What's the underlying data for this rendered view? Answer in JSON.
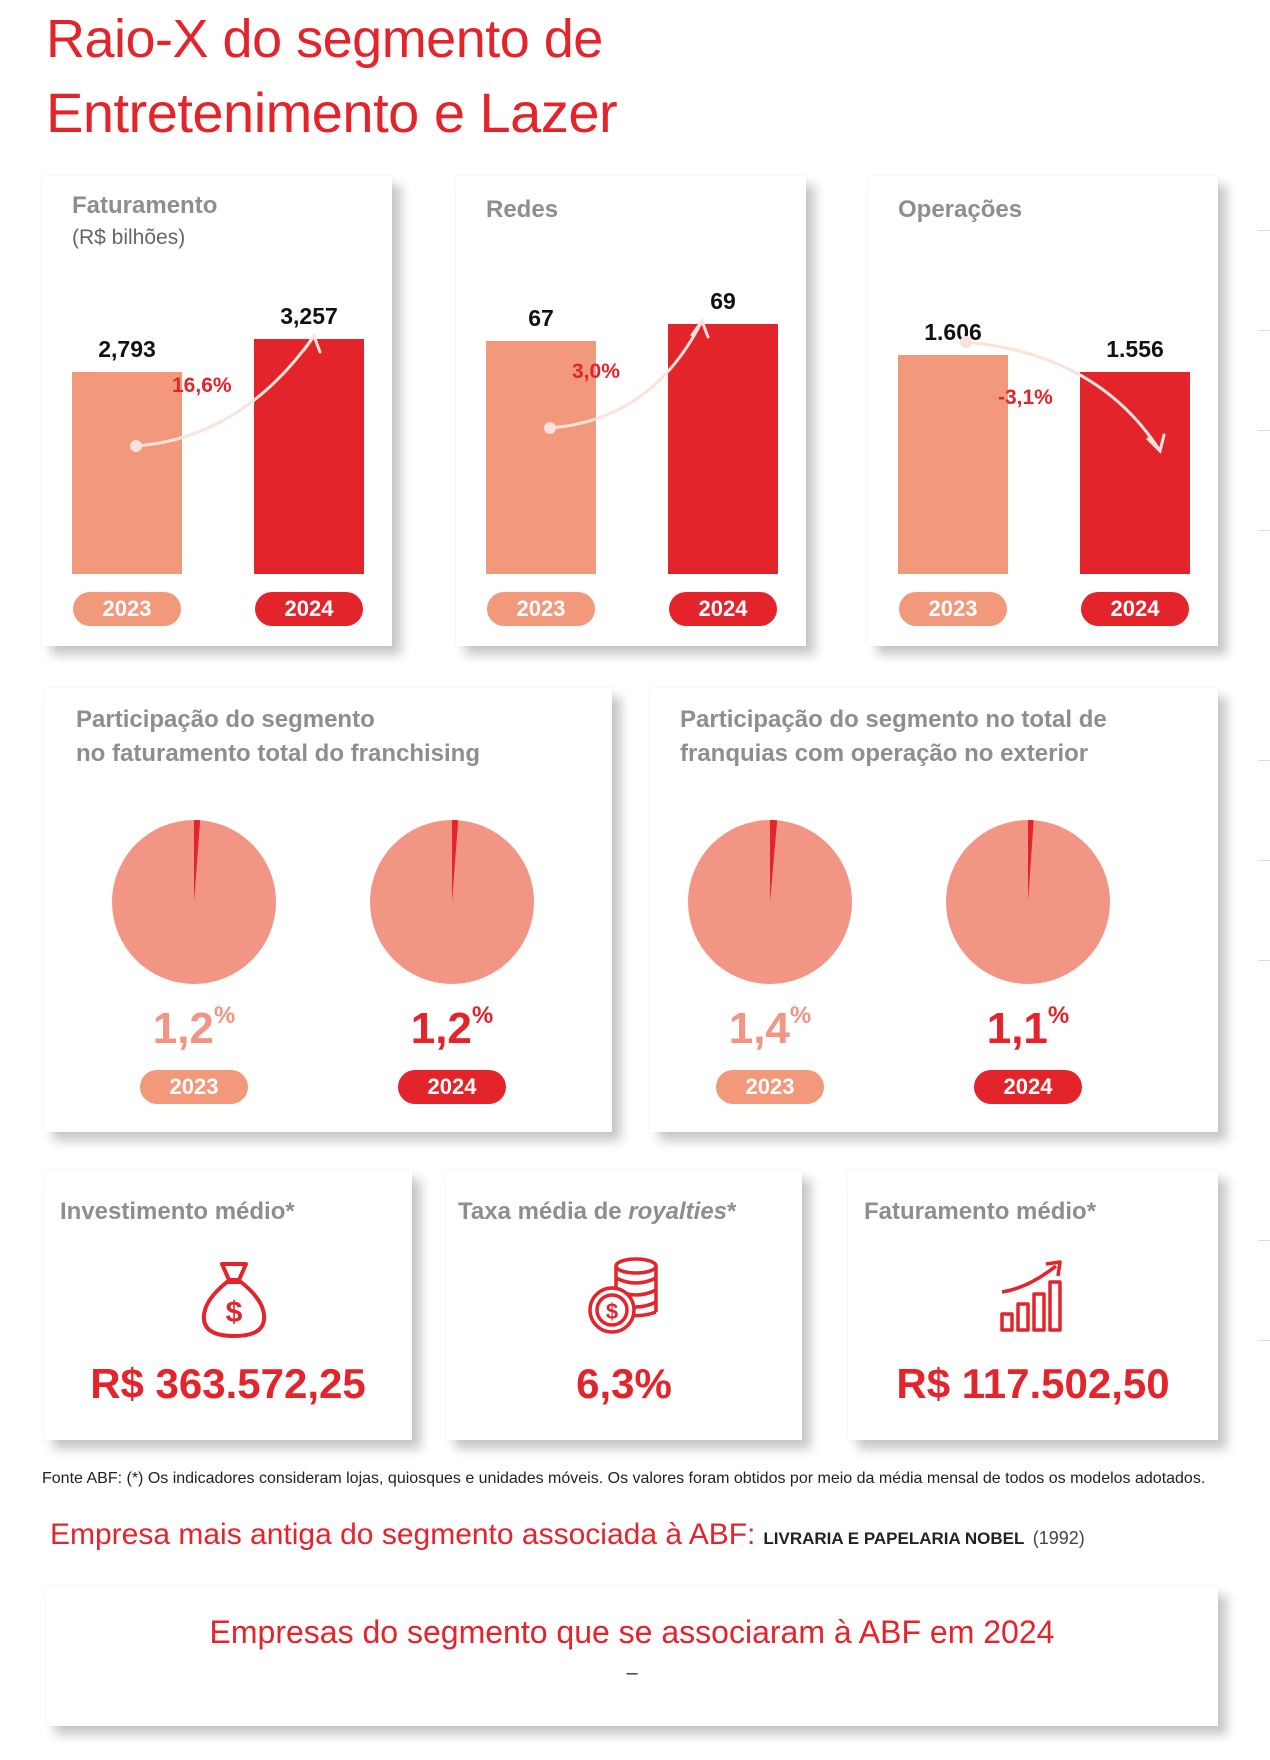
{
  "title": {
    "line1": "Raio-X do segmento de",
    "line2": "Entretenimento e Lazer"
  },
  "colors": {
    "light": "#f2987b",
    "dark": "#e3242b",
    "pie_light": "#f29585",
    "pie_slice": "#e3242b",
    "gray_title": "#8e8e8e"
  },
  "bar_cards": [
    {
      "title": "Faturamento",
      "subtitle": "(R$ bilhões)",
      "years": [
        "2023",
        "2024"
      ],
      "labels": [
        "2,793",
        "3,257"
      ],
      "change": "16,6%",
      "direction": "up"
    },
    {
      "title": "Redes",
      "subtitle": "",
      "years": [
        "2023",
        "2024"
      ],
      "labels": [
        "67",
        "69"
      ],
      "change": "3,0%",
      "direction": "up"
    },
    {
      "title": "Operações",
      "subtitle": "",
      "years": [
        "2023",
        "2024"
      ],
      "labels": [
        "1.606",
        "1.556"
      ],
      "change": "-3,1%",
      "direction": "down"
    }
  ],
  "pie_cards": [
    {
      "title_line1": "Participação do segmento",
      "title_line2": "no faturamento total do franchising",
      "years": [
        "2023",
        "2024"
      ],
      "labels": [
        "1,2",
        "1,2"
      ],
      "unit": "%"
    },
    {
      "title_line1": "Participação do segmento no total de",
      "title_line2": "franquias com operação no exterior",
      "years": [
        "2023",
        "2024"
      ],
      "labels": [
        "1,4",
        "1,1"
      ],
      "unit": "%"
    }
  ],
  "kpis": [
    {
      "title": "Investimento médio*",
      "value": "R$ 363.572,25",
      "icon": "money-bag-icon"
    },
    {
      "title_prefix": "Taxa média de ",
      "title_italic": "royalties",
      "title_suffix": "*",
      "value": "6,3%",
      "icon": "coins-icon"
    },
    {
      "title": "Faturamento médio*",
      "value": "R$ 117.502,50",
      "icon": "growth-chart-icon"
    }
  ],
  "footnote": "Fonte ABF: (*) Os indicadores consideram lojas, quiosques e unidades móveis. Os valores foram obtidos por meio da média mensal de todos os modelos adotados.",
  "oldest": {
    "label": "Empresa mais antiga do segmento associada à ABF:",
    "name": "LIVRARIA E PAPELARIA NOBEL",
    "year": "(1992)"
  },
  "associated": {
    "title": "Empresas do segmento que se associaram à ABF em 2024",
    "value": "–"
  },
  "chart_data": [
    {
      "type": "bar",
      "title": "Faturamento",
      "ylabel": "(R$ bilhões)",
      "categories": [
        "2023",
        "2024"
      ],
      "values": [
        2.793,
        3.257
      ],
      "annotation": "16,6%"
    },
    {
      "type": "bar",
      "title": "Redes",
      "categories": [
        "2023",
        "2024"
      ],
      "values": [
        67,
        69
      ],
      "annotation": "3,0%"
    },
    {
      "type": "bar",
      "title": "Operações",
      "categories": [
        "2023",
        "2024"
      ],
      "values": [
        1606,
        1556
      ],
      "annotation": "-3,1%"
    },
    {
      "type": "pie",
      "title": "Participação do segmento no faturamento total do franchising",
      "categories": [
        "2023",
        "2024"
      ],
      "values": [
        1.2,
        1.2
      ]
    },
    {
      "type": "pie",
      "title": "Participação do segmento no total de franquias com operação no exterior",
      "categories": [
        "2023",
        "2024"
      ],
      "values": [
        1.4,
        1.1
      ]
    }
  ]
}
